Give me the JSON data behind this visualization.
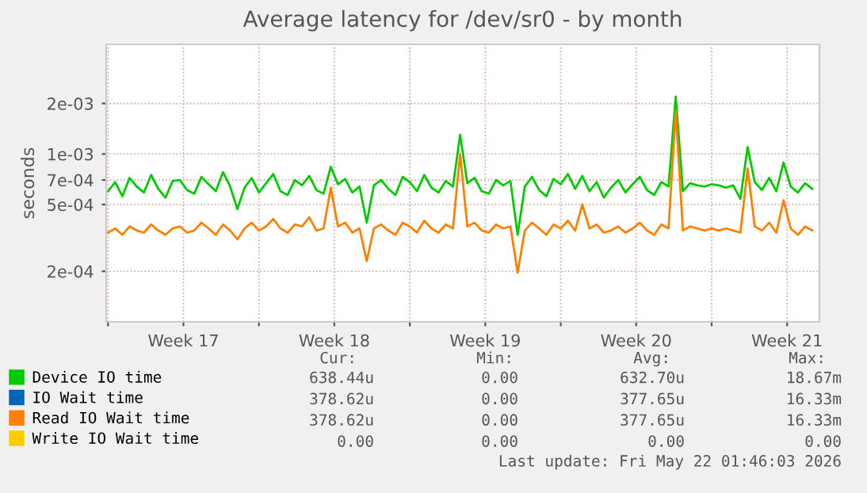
{
  "chart_data": {
    "type": "line",
    "title": "Average latency for /dev/sr0 - by month",
    "ylabel": "seconds",
    "log": "y",
    "grid": true,
    "legend": "bottom",
    "marker": "none",
    "line_style": "solid",
    "xlim": [
      "2026-04-19T22:00",
      "2026-05-23T00:00"
    ],
    "xticks": [
      {
        "value": "2026-04-20T00:00",
        "label": null
      },
      {
        "value": "2026-04-23T12:00",
        "label": "Week 17"
      },
      {
        "value": "2026-04-27T00:00",
        "label": null
      },
      {
        "value": "2026-04-30T12:00",
        "label": "Week 18"
      },
      {
        "value": "2026-05-04T00:00",
        "label": null
      },
      {
        "value": "2026-05-07T12:00",
        "label": "Week 19"
      },
      {
        "value": "2026-05-11T00:00",
        "label": null
      },
      {
        "value": "2026-05-14T12:00",
        "label": "Week 20"
      },
      {
        "value": "2026-05-18T00:00",
        "label": null
      },
      {
        "value": "2026-05-21T12:00",
        "label": "Week 21"
      }
    ],
    "ylim": [
      0.0001,
      0.0045
    ],
    "yticks": [
      {
        "value": 0.0002,
        "label": "2e-04"
      },
      {
        "value": 0.0005,
        "label": "5e-04"
      },
      {
        "value": 0.0007,
        "label": "7e-04"
      },
      {
        "value": 0.001,
        "label": "1e-03"
      },
      {
        "value": 0.002,
        "label": "2e-03"
      }
    ],
    "x": [
      "2026-04-20T00:00",
      "2026-04-20T08:00",
      "2026-04-20T16:00",
      "2026-04-21T00:00",
      "2026-04-21T08:00",
      "2026-04-21T16:00",
      "2026-04-22T00:00",
      "2026-04-22T08:00",
      "2026-04-22T16:00",
      "2026-04-23T00:00",
      "2026-04-23T08:00",
      "2026-04-23T16:00",
      "2026-04-24T00:00",
      "2026-04-24T08:00",
      "2026-04-24T16:00",
      "2026-04-25T00:00",
      "2026-04-25T08:00",
      "2026-04-25T16:00",
      "2026-04-26T00:00",
      "2026-04-26T08:00",
      "2026-04-26T16:00",
      "2026-04-27T00:00",
      "2026-04-27T08:00",
      "2026-04-27T16:00",
      "2026-04-28T00:00",
      "2026-04-28T08:00",
      "2026-04-28T16:00",
      "2026-04-29T00:00",
      "2026-04-29T08:00",
      "2026-04-29T16:00",
      "2026-04-30T00:00",
      "2026-04-30T08:00",
      "2026-04-30T16:00",
      "2026-05-01T00:00",
      "2026-05-01T08:00",
      "2026-05-01T16:00",
      "2026-05-02T00:00",
      "2026-05-02T08:00",
      "2026-05-02T16:00",
      "2026-05-03T00:00",
      "2026-05-03T08:00",
      "2026-05-03T16:00",
      "2026-05-04T00:00",
      "2026-05-04T08:00",
      "2026-05-04T16:00",
      "2026-05-05T00:00",
      "2026-05-05T08:00",
      "2026-05-05T16:00",
      "2026-05-06T00:00",
      "2026-05-06T08:00",
      "2026-05-06T16:00",
      "2026-05-07T00:00",
      "2026-05-07T08:00",
      "2026-05-07T16:00",
      "2026-05-08T00:00",
      "2026-05-08T08:00",
      "2026-05-08T16:00",
      "2026-05-09T00:00",
      "2026-05-09T08:00",
      "2026-05-09T16:00",
      "2026-05-10T00:00",
      "2026-05-10T08:00",
      "2026-05-10T16:00",
      "2026-05-11T00:00",
      "2026-05-11T08:00",
      "2026-05-11T16:00",
      "2026-05-12T00:00",
      "2026-05-12T08:00",
      "2026-05-12T16:00",
      "2026-05-13T00:00",
      "2026-05-13T08:00",
      "2026-05-13T16:00",
      "2026-05-14T00:00",
      "2026-05-14T08:00",
      "2026-05-14T16:00",
      "2026-05-15T00:00",
      "2026-05-15T08:00",
      "2026-05-15T16:00",
      "2026-05-16T00:00",
      "2026-05-16T08:00",
      "2026-05-16T16:00",
      "2026-05-17T00:00",
      "2026-05-17T08:00",
      "2026-05-17T16:00",
      "2026-05-18T00:00",
      "2026-05-18T08:00",
      "2026-05-18T16:00",
      "2026-05-19T00:00",
      "2026-05-19T08:00",
      "2026-05-19T16:00",
      "2026-05-20T00:00",
      "2026-05-20T08:00",
      "2026-05-20T16:00",
      "2026-05-21T00:00",
      "2026-05-21T08:00",
      "2026-05-21T16:00",
      "2026-05-22T00:00",
      "2026-05-22T08:00",
      "2026-05-22T16:00"
    ],
    "series": [
      {
        "name": "Device IO time",
        "color": "#00cc00",
        "values": [
          0.0006,
          0.00068,
          0.00056,
          0.00072,
          0.00064,
          0.00059,
          0.00075,
          0.00062,
          0.00055,
          0.00069,
          0.0007,
          0.00061,
          0.00058,
          0.00073,
          0.00066,
          0.0006,
          0.00078,
          0.00064,
          0.00047,
          0.00063,
          0.00072,
          0.00059,
          0.00067,
          0.00076,
          0.0006,
          0.00057,
          0.0007,
          0.00065,
          0.00074,
          0.00061,
          0.00058,
          0.00084,
          0.00066,
          0.00071,
          0.00059,
          0.00064,
          0.00039,
          0.00065,
          0.0007,
          0.00062,
          0.00057,
          0.00073,
          0.00068,
          0.0006,
          0.00075,
          0.00063,
          0.00059,
          0.00069,
          0.00064,
          0.0013,
          0.00067,
          0.00072,
          0.0006,
          0.00058,
          0.0007,
          0.00065,
          0.00069,
          0.00033,
          0.00064,
          0.00073,
          0.00061,
          0.00056,
          0.00071,
          0.00066,
          0.00076,
          0.00062,
          0.00074,
          0.0006,
          0.00068,
          0.00055,
          0.00063,
          0.0007,
          0.00059,
          0.00066,
          0.00073,
          0.00061,
          0.00057,
          0.00068,
          0.00064,
          0.0022,
          0.0006,
          0.00067,
          0.00065,
          0.00064,
          0.00066,
          0.00065,
          0.00063,
          0.00065,
          0.00054,
          0.0011,
          0.00068,
          0.00061,
          0.00072,
          0.0006,
          0.00089,
          0.00064,
          0.00059,
          0.00067,
          0.00062
        ]
      },
      {
        "name": "IO Wait time",
        "color": "#0066b3",
        "values": [
          null,
          null,
          null,
          null,
          null,
          null,
          null,
          null,
          null,
          null,
          null,
          null,
          null,
          null,
          null,
          null,
          null,
          null,
          null,
          null,
          null,
          null,
          null,
          null,
          null,
          null,
          null,
          null,
          null,
          null,
          null,
          null,
          null,
          null,
          null,
          null,
          null,
          null,
          null,
          null,
          null,
          null,
          null,
          null,
          null,
          null,
          null,
          null,
          null,
          null,
          null,
          null,
          null,
          null,
          null,
          null,
          null,
          null,
          null,
          null,
          null,
          null,
          null,
          null,
          null,
          null,
          null,
          null,
          null,
          null,
          null,
          null,
          null,
          null,
          null,
          null,
          null,
          null,
          null,
          null,
          null,
          null,
          null,
          null,
          null,
          null,
          null,
          null,
          null,
          null,
          null,
          null,
          null,
          null,
          null,
          null,
          null,
          null,
          null
        ]
      },
      {
        "name": "Read IO Wait time",
        "color": "#ff8000",
        "values": [
          0.00034,
          0.00036,
          0.00033,
          0.00037,
          0.00035,
          0.00034,
          0.00038,
          0.00035,
          0.00033,
          0.00036,
          0.00037,
          0.00034,
          0.00035,
          0.00039,
          0.00036,
          0.00033,
          0.00038,
          0.00035,
          0.00031,
          0.00036,
          0.00039,
          0.00035,
          0.00037,
          0.00041,
          0.00036,
          0.00034,
          0.00038,
          0.00037,
          0.00042,
          0.00035,
          0.00036,
          0.00063,
          0.00037,
          0.00039,
          0.00034,
          0.00036,
          0.00023,
          0.00036,
          0.00038,
          0.00035,
          0.00033,
          0.00039,
          0.00037,
          0.00034,
          0.0004,
          0.00036,
          0.00034,
          0.00038,
          0.00036,
          0.001,
          0.00037,
          0.00039,
          0.00035,
          0.00034,
          0.00038,
          0.00036,
          0.00037,
          0.000196,
          0.00035,
          0.00039,
          0.00036,
          0.00033,
          0.00038,
          0.00036,
          0.0004,
          0.00035,
          0.0005,
          0.00036,
          0.00038,
          0.00034,
          0.00035,
          0.00037,
          0.00034,
          0.00036,
          0.00039,
          0.00035,
          0.00033,
          0.00038,
          0.00036,
          0.0018,
          0.00035,
          0.00037,
          0.00036,
          0.00035,
          0.00036,
          0.00035,
          0.00036,
          0.00035,
          0.00034,
          0.00082,
          0.00037,
          0.00035,
          0.00039,
          0.00034,
          0.00053,
          0.00036,
          0.00033,
          0.00037,
          0.00035
        ]
      },
      {
        "name": "Write IO Wait time",
        "color": "#ffcc00",
        "values": [
          null,
          null,
          null,
          null,
          null,
          null,
          null,
          null,
          null,
          null,
          null,
          null,
          null,
          null,
          null,
          null,
          null,
          null,
          null,
          null,
          null,
          null,
          null,
          null,
          null,
          null,
          null,
          null,
          null,
          null,
          null,
          null,
          null,
          null,
          null,
          null,
          null,
          null,
          null,
          null,
          null,
          null,
          null,
          null,
          null,
          null,
          null,
          null,
          null,
          null,
          null,
          null,
          null,
          null,
          null,
          null,
          null,
          null,
          null,
          null,
          null,
          null,
          null,
          null,
          null,
          null,
          null,
          null,
          null,
          null,
          null,
          null,
          null,
          null,
          null,
          null,
          null,
          null,
          null,
          null,
          null,
          null,
          null,
          null,
          null,
          null,
          null,
          null,
          null,
          null,
          null,
          null,
          null,
          null,
          null,
          null,
          null,
          null,
          null
        ]
      }
    ],
    "annotations": [
      "Cur:",
      "Min:",
      "Avg:",
      "Max:",
      "638.44u",
      "0.00",
      "632.70u",
      "18.67m",
      "378.62u",
      "0.00",
      "377.65u",
      "16.33m",
      "378.62u",
      "0.00",
      "377.65u",
      "16.33m",
      "0.00",
      "0.00",
      "0.00",
      "0.00",
      "Last update: Fri May 22 01:46:03 2026"
    ]
  }
}
